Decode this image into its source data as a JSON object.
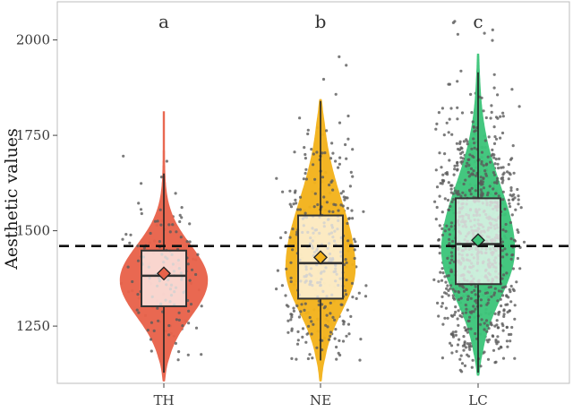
{
  "chart_data": {
    "type": "violin-box",
    "title": "",
    "xlabel": "",
    "ylabel": "Aesthetic values",
    "ylim": [
      1100,
      2100
    ],
    "yticks": [
      1250,
      1500,
      1750,
      2000
    ],
    "categories": [
      "TH",
      "NE",
      "LC"
    ],
    "reference_line": 1460,
    "groups": [
      {
        "name": "TH",
        "significance_letter": "a",
        "color": "#E8624A",
        "violin_min": 1105,
        "violin_max": 1815,
        "q1": 1302,
        "median": 1382,
        "q3": 1448,
        "whisker_low": 1128,
        "whisker_high": 1650,
        "mean": 1388,
        "n_points": 160,
        "point_range": [
          1150,
          1780
        ]
      },
      {
        "name": "NE",
        "significance_letter": "b",
        "color": "#F3B21B",
        "violin_min": 1105,
        "violin_max": 1845,
        "q1": 1322,
        "median": 1415,
        "q3": 1540,
        "whisker_low": 1160,
        "whisker_high": 1840,
        "mean": 1430,
        "n_points": 420,
        "point_range": [
          1160,
          2005
        ]
      },
      {
        "name": "LC",
        "significance_letter": "c",
        "color": "#3CC57A",
        "violin_min": 1120,
        "violin_max": 1965,
        "q1": 1360,
        "median": 1465,
        "q3": 1585,
        "whisker_low": 1128,
        "whisker_high": 1915,
        "mean": 1475,
        "n_points": 1100,
        "point_range": [
          1130,
          2055
        ]
      }
    ]
  }
}
